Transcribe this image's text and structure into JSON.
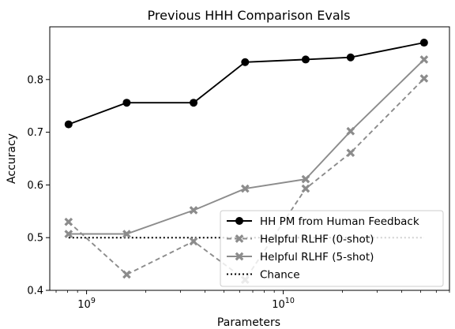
{
  "chart_data": {
    "type": "line",
    "title": "Previous HHH Comparison Evals",
    "xlabel": "Parameters",
    "ylabel": "Accuracy",
    "xscale": "log",
    "xlim": [
      650000000,
      70000000000
    ],
    "ylim": [
      0.4,
      0.9
    ],
    "x_ticks": [
      {
        "value": 1000000000,
        "base": "10",
        "exp": "9"
      },
      {
        "value": 10000000000,
        "base": "10",
        "exp": "10"
      }
    ],
    "y_ticks": [
      {
        "value": 0.4,
        "label": "0.4"
      },
      {
        "value": 0.5,
        "label": "0.5"
      },
      {
        "value": 0.6,
        "label": "0.6"
      },
      {
        "value": 0.7,
        "label": "0.7"
      },
      {
        "value": 0.8,
        "label": "0.8"
      }
    ],
    "grid": false,
    "legend_position": "lower-right",
    "series": [
      {
        "name": "HH PM from Human Feedback",
        "color": "#000000",
        "dash": "solid",
        "marker": "circle",
        "x": [
          810000000,
          1600000000,
          3500000000,
          6400000000,
          13000000000,
          22000000000,
          52000000000
        ],
        "y": [
          0.715,
          0.756,
          0.756,
          0.833,
          0.838,
          0.842,
          0.87
        ]
      },
      {
        "name": "Helpful RLHF (0-shot)",
        "color": "#8c8c8c",
        "dash": "dashed",
        "marker": "x",
        "x": [
          810000000,
          1600000000,
          3500000000,
          6400000000,
          13000000000,
          22000000000,
          52000000000
        ],
        "y": [
          0.53,
          0.43,
          0.493,
          0.42,
          0.593,
          0.661,
          0.802
        ]
      },
      {
        "name": "Helpful RLHF (5-shot)",
        "color": "#8c8c8c",
        "dash": "solid",
        "marker": "x",
        "x": [
          810000000,
          1600000000,
          3500000000,
          6400000000,
          13000000000,
          22000000000,
          52000000000
        ],
        "y": [
          0.507,
          0.507,
          0.552,
          0.593,
          0.611,
          0.702,
          0.838
        ]
      },
      {
        "name": "Chance",
        "color": "#000000",
        "dash": "dotted",
        "marker": "none",
        "x": [
          810000000,
          52000000000
        ],
        "y": [
          0.5,
          0.5
        ]
      }
    ]
  }
}
